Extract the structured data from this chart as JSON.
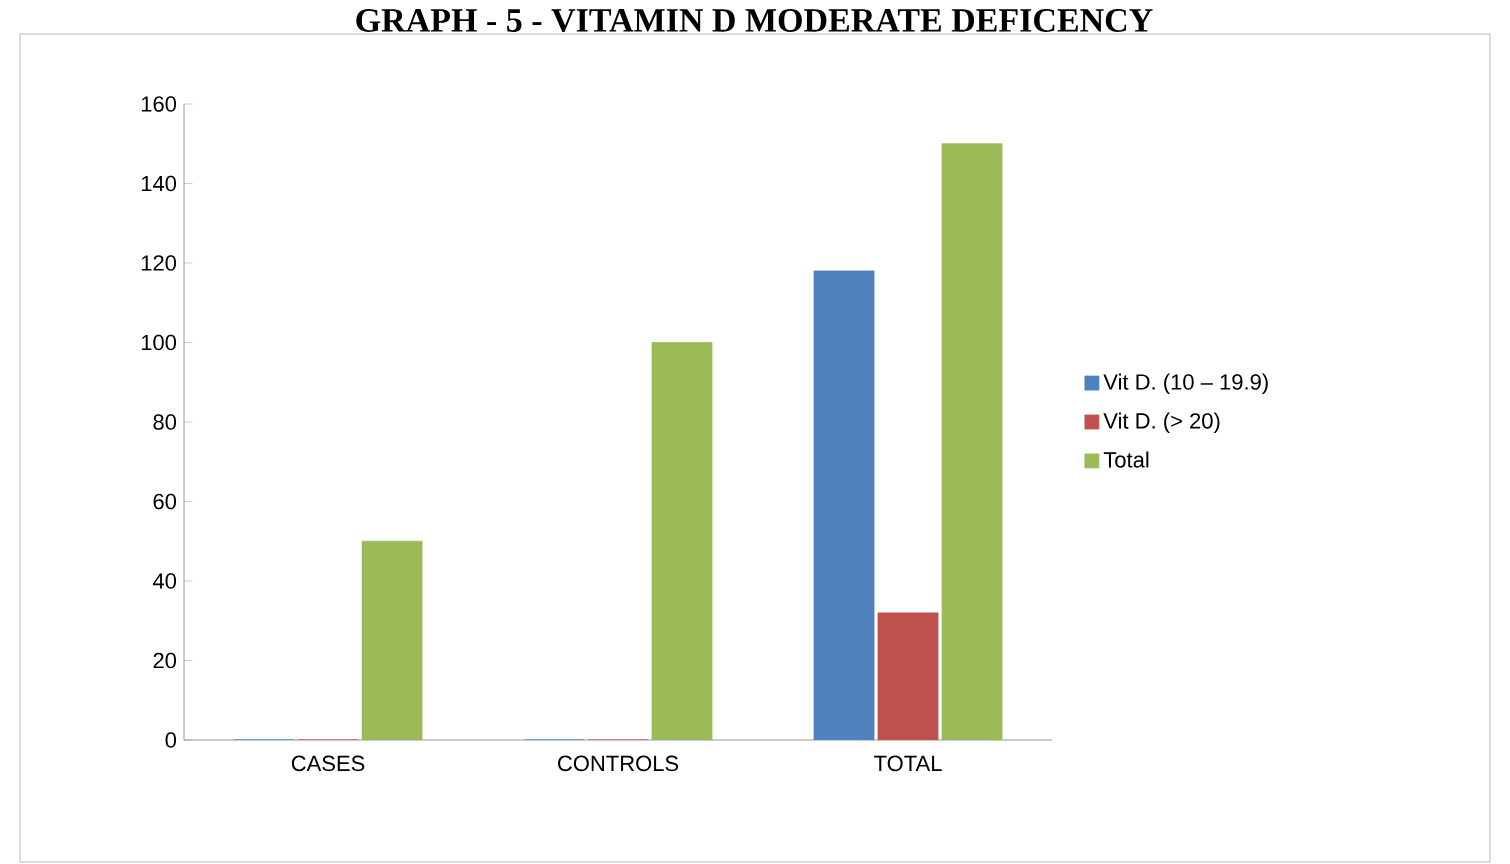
{
  "chart_data": {
    "type": "bar",
    "title": "GRAPH - 5 - VITAMIN D MODERATE DEFICENCY",
    "categories": [
      "CASES",
      "CONTROLS",
      "TOTAL"
    ],
    "series": [
      {
        "name": "Vit D. (10 – 19.9)",
        "color": "#4f81bd",
        "values": [
          0,
          0,
          118
        ]
      },
      {
        "name": "Vit D. (> 20)",
        "color": "#c0504d",
        "values": [
          0,
          0,
          32
        ]
      },
      {
        "name": "Total",
        "color": "#9bbb59",
        "values": [
          50,
          100,
          150
        ]
      }
    ],
    "ylim": [
      0,
      160
    ],
    "yticks": [
      0,
      20,
      40,
      60,
      80,
      100,
      120,
      140,
      160
    ],
    "legend": "right",
    "grid": false
  }
}
